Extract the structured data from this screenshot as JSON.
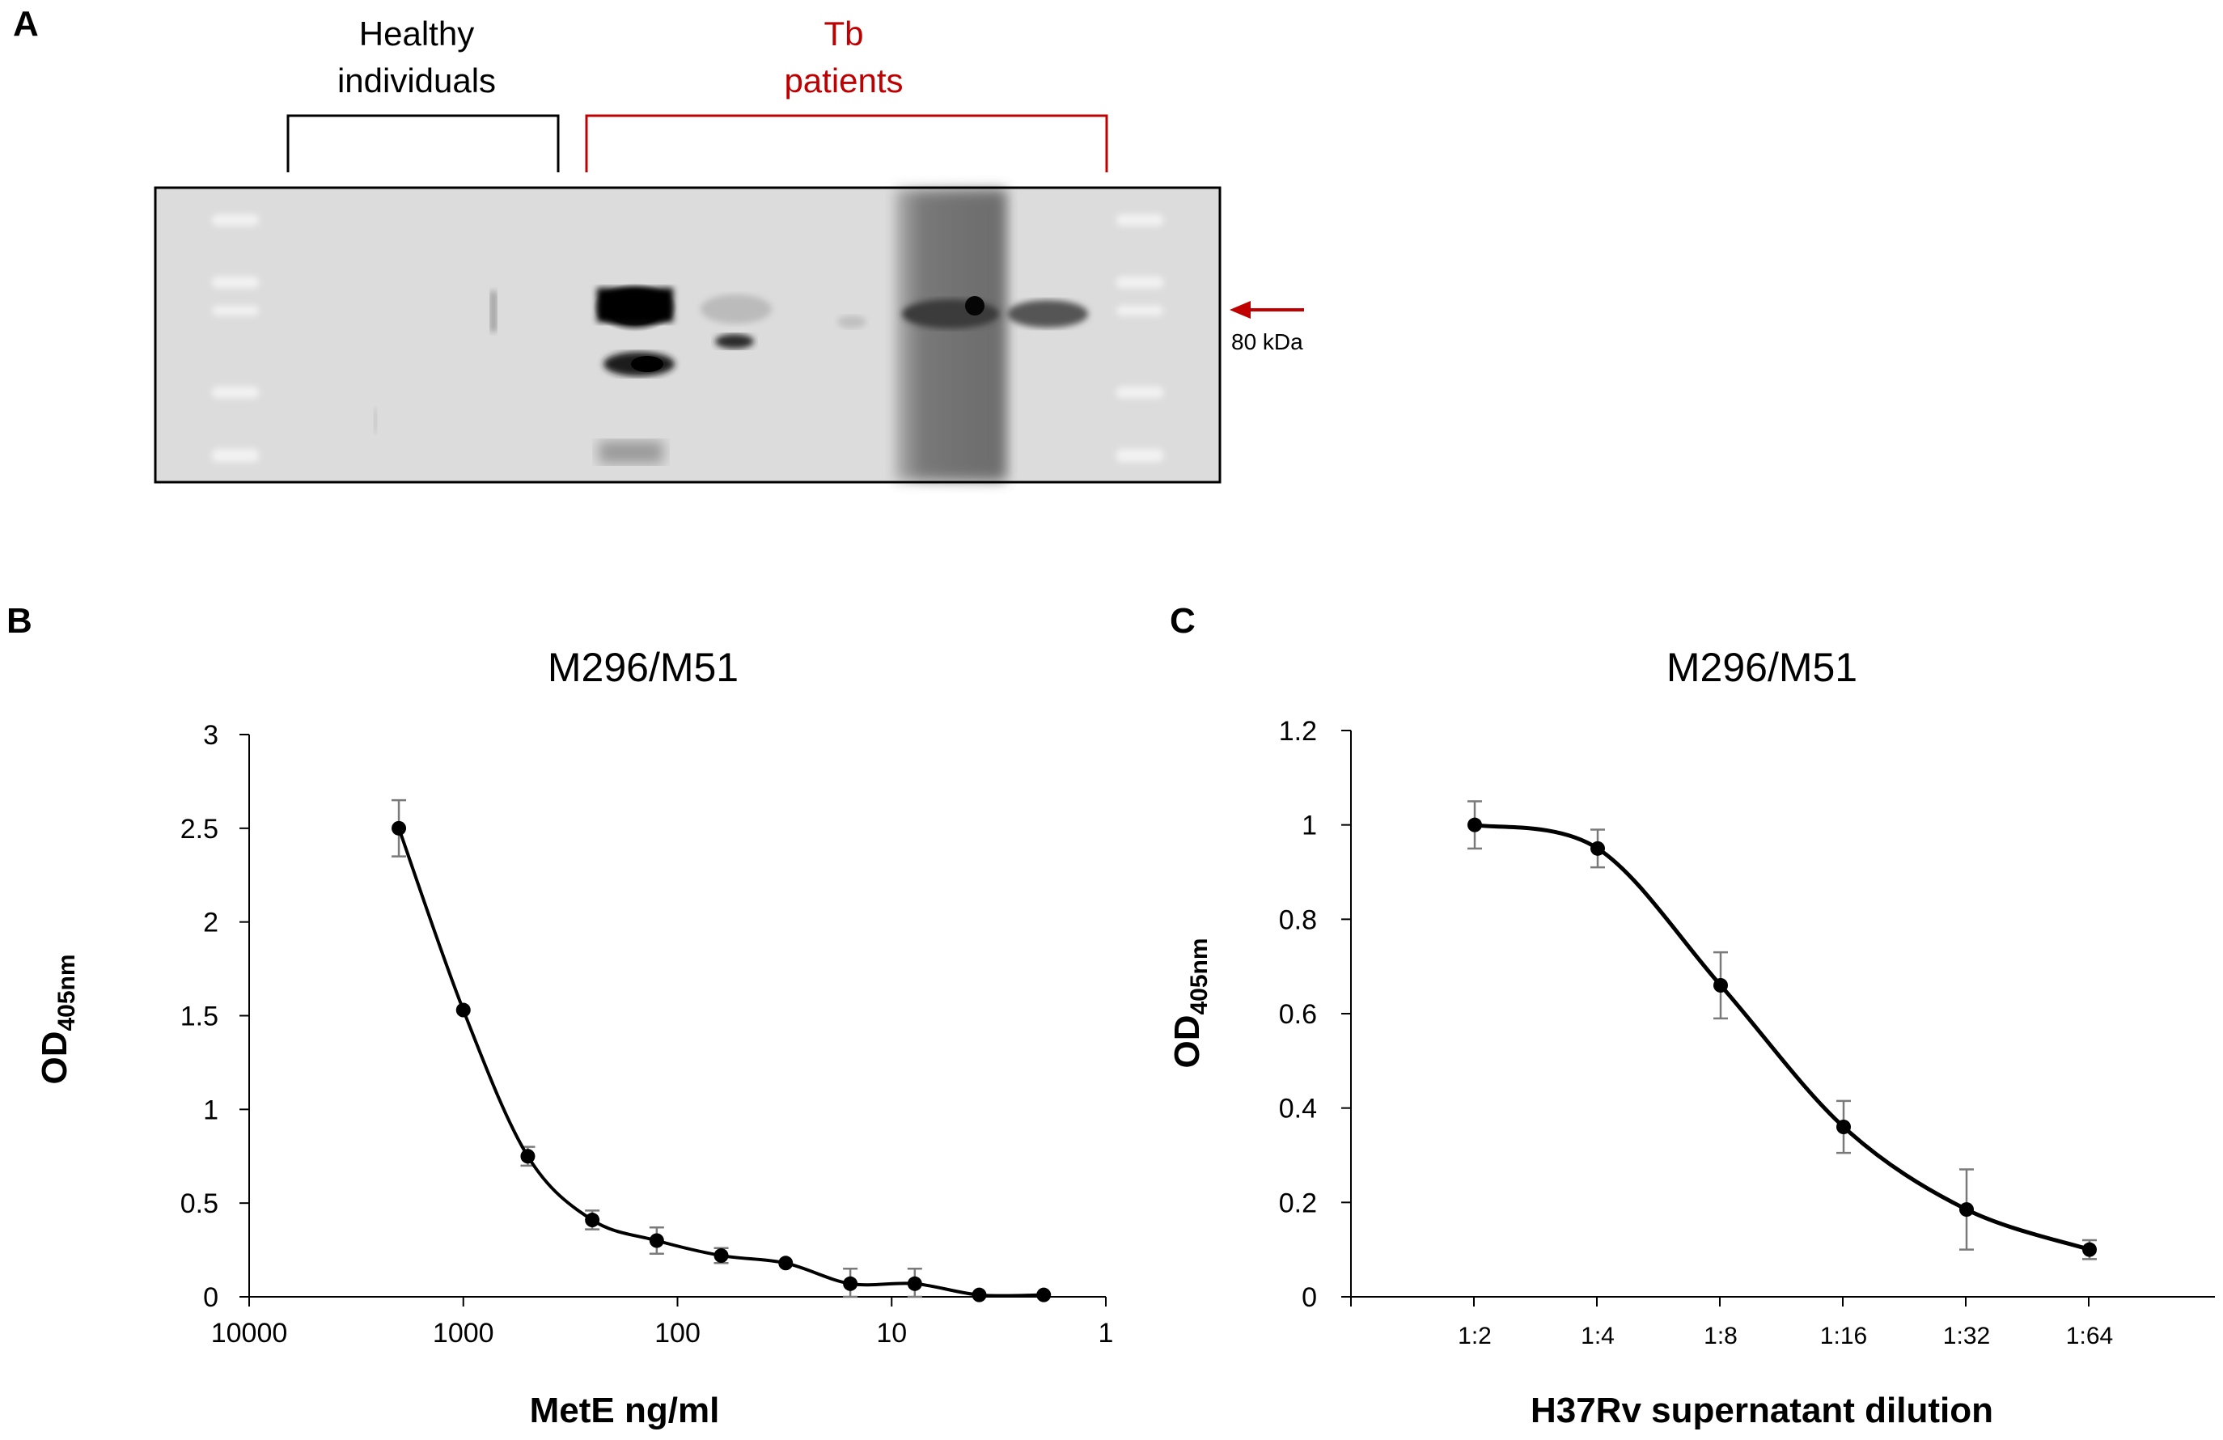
{
  "panel_a": {
    "letter": "A",
    "groups": [
      {
        "lines": [
          "Healthy",
          "individuals"
        ],
        "color": "#000000"
      },
      {
        "lines": [
          "Tb",
          "patients"
        ],
        "color": "#c00000"
      }
    ],
    "marker_label": "80 kDa",
    "arrow_color": "#c00000"
  },
  "chart_data": [
    {
      "panel": "B",
      "type": "line",
      "title": "M296/M51",
      "xlabel": "MetE ng/ml",
      "ylabel_main": "OD",
      "ylabel_sub": "405nm",
      "x_scale": "log",
      "x_reversed": true,
      "xlim": [
        10000,
        1
      ],
      "ylim": [
        0,
        3
      ],
      "x_ticks": [
        "10000",
        "1000",
        "100",
        "10",
        "1"
      ],
      "y_ticks": [
        "0",
        "0.5",
        "1",
        "1.5",
        "2",
        "2.5",
        "3"
      ],
      "x": [
        2000,
        1000,
        500,
        250,
        125,
        62.5,
        31.25,
        15.6,
        7.8,
        3.9,
        1.95
      ],
      "y": [
        2.5,
        1.53,
        0.75,
        0.41,
        0.3,
        0.22,
        0.18,
        0.07,
        0.07,
        0.01,
        0.01
      ],
      "error": [
        0.15,
        0.0,
        0.05,
        0.05,
        0.07,
        0.04,
        0.0,
        0.08,
        0.08,
        0.0,
        0.0
      ],
      "grid": false,
      "legend": "none"
    },
    {
      "panel": "C",
      "type": "line",
      "title": "M296/M51",
      "xlabel": "H37Rv supernatant dilution",
      "ylabel_main": "OD",
      "ylabel_sub": "405nm",
      "categories": [
        "1:2",
        "1:4",
        "1:8",
        "1:16",
        "1:32",
        "1:64"
      ],
      "ylim": [
        0,
        1.2
      ],
      "y_ticks": [
        "0",
        "0.2",
        "0.4",
        "0.6",
        "0.8",
        "1",
        "1.2"
      ],
      "y": [
        1.0,
        0.95,
        0.66,
        0.36,
        0.185,
        0.1
      ],
      "error": [
        0.05,
        0.04,
        0.07,
        0.055,
        0.085,
        0.02
      ],
      "grid": false,
      "legend": "none"
    }
  ]
}
